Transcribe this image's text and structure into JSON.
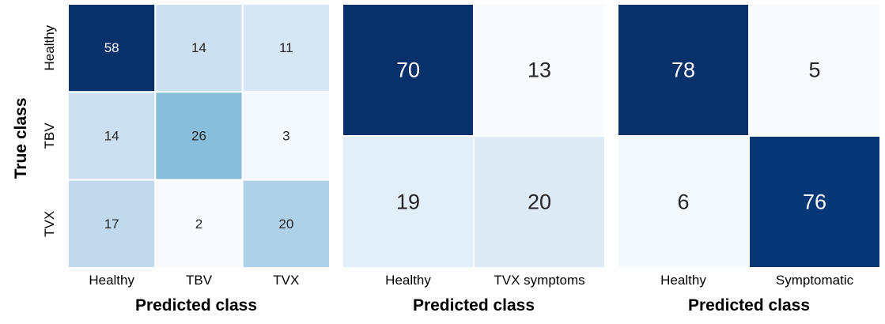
{
  "y_axis_title": "True class",
  "chart_data": [
    {
      "type": "heatmap",
      "xlabel": "Predicted class",
      "ylabel": "True class",
      "x_categories": [
        "Healthy",
        "TBV",
        "TVX"
      ],
      "y_categories": [
        "Healthy",
        "TBV",
        "TVX"
      ],
      "values": [
        [
          58,
          14,
          11
        ],
        [
          14,
          26,
          3
        ],
        [
          17,
          2,
          20
        ]
      ],
      "colormap": "Blues"
    },
    {
      "type": "heatmap",
      "xlabel": "Predicted class",
      "x_categories": [
        "Healthy",
        "TVX symptoms"
      ],
      "y_categories": [],
      "values": [
        [
          70,
          13
        ],
        [
          19,
          20
        ]
      ],
      "colormap": "Blues"
    },
    {
      "type": "heatmap",
      "xlabel": "Predicted class",
      "x_categories": [
        "Healthy",
        "Symptomatic"
      ],
      "y_categories": [],
      "values": [
        [
          78,
          5
        ],
        [
          6,
          76
        ]
      ],
      "colormap": "Blues"
    }
  ]
}
